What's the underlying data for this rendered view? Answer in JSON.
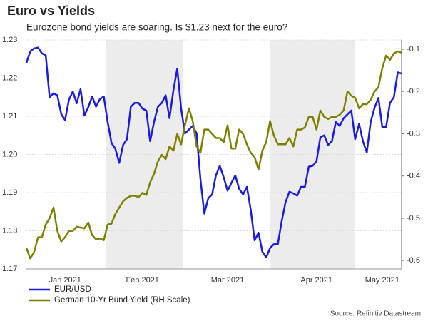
{
  "chart_data": {
    "type": "line",
    "title": "Euro vs Yields",
    "subtitle": "Eurozone bond yields are soaring. Is $1.23 next for the euro?",
    "source": "Source: Refinitiv Datastream",
    "categories": [
      null,
      null,
      null,
      null,
      null,
      null,
      null,
      null,
      null,
      null,
      "Jan 2021",
      null,
      null,
      null,
      null,
      null,
      null,
      null,
      null,
      null,
      null,
      null,
      null,
      null,
      null,
      null,
      null,
      null,
      null,
      null,
      "Feb 2021",
      null,
      null,
      null,
      null,
      null,
      null,
      null,
      null,
      null,
      null,
      null,
      null,
      null,
      null,
      null,
      null,
      null,
      null,
      null,
      null,
      null,
      "Mar 2021",
      null,
      null,
      null,
      null,
      null,
      null,
      null,
      null,
      null,
      null,
      null,
      null,
      null,
      null,
      null,
      null,
      null,
      null,
      null,
      null,
      null,
      null,
      "Apr 2021",
      null,
      null,
      null,
      null,
      null,
      null,
      null,
      null,
      null,
      null,
      null,
      null,
      null,
      null,
      null,
      null,
      "May 2021",
      null,
      null,
      null,
      null,
      null
    ],
    "ylim": [
      1.17,
      1.23
    ],
    "yticks": [
      1.17,
      1.18,
      1.19,
      {
        "value": 1.2,
        "label": "1.20"
      },
      1.21,
      1.22,
      1.23
    ],
    "y2lim": [
      -0.62,
      -0.078
    ],
    "y2ticks": [
      -0.6,
      -0.5,
      -0.4,
      -0.3,
      -0.2,
      -0.1
    ],
    "grid": true,
    "legend": "bottom-left",
    "series": [
      {
        "name": "EUR/USD",
        "color": "#1a1ae6",
        "values": [
          1.224,
          1.227,
          1.2278,
          1.228,
          1.2265,
          1.226,
          1.215,
          1.216,
          1.2155,
          1.2106,
          1.209,
          1.2143,
          1.2165,
          1.2134,
          1.2171,
          1.2102,
          1.2124,
          1.2152,
          1.2125,
          1.2145,
          1.2152,
          1.2085,
          1.203,
          1.2015,
          1.1978,
          1.2025,
          1.204,
          1.2125,
          1.2135,
          1.2135,
          1.212,
          1.2115,
          1.2035,
          1.2085,
          1.2125,
          1.2135,
          1.2155,
          1.2095,
          1.2168,
          1.2225,
          1.212,
          1.2055,
          1.2065,
          1.2075,
          1.2055,
          1.1935,
          1.1845,
          1.1885,
          1.1895,
          1.1945,
          1.197,
          1.194,
          1.1905,
          1.1925,
          1.1945,
          1.191,
          1.1895,
          1.1915,
          1.1855,
          1.1775,
          1.1795,
          1.1745,
          1.173,
          1.1755,
          1.1765,
          1.1765,
          1.1825,
          1.1875,
          1.1902,
          1.1898,
          1.1892,
          1.1915,
          1.1915,
          1.1968,
          1.197,
          1.1982,
          1.2045,
          1.205,
          1.2025,
          1.2035,
          1.2085,
          1.2075,
          1.2095,
          1.2105,
          1.2115,
          1.204,
          1.208,
          1.2035,
          1.2005,
          1.2085,
          1.2122,
          1.2148,
          1.2072,
          1.2072,
          1.2135,
          1.215,
          1.2215,
          1.2212
        ]
      },
      {
        "name": "German 10-Yr Bund Yield (RH Scale)",
        "color": "#808000",
        "axis": "y2",
        "values": [
          -0.57,
          -0.595,
          -0.58,
          -0.545,
          -0.545,
          -0.515,
          -0.5,
          -0.475,
          -0.53,
          -0.555,
          -0.545,
          -0.53,
          -0.53,
          -0.52,
          -0.522,
          -0.524,
          -0.51,
          -0.54,
          -0.55,
          -0.548,
          -0.552,
          -0.515,
          -0.513,
          -0.49,
          -0.475,
          -0.46,
          -0.452,
          -0.447,
          -0.447,
          -0.45,
          -0.44,
          -0.445,
          -0.415,
          -0.395,
          -0.365,
          -0.35,
          -0.36,
          -0.33,
          -0.34,
          -0.3,
          -0.325,
          -0.28,
          -0.24,
          -0.27,
          -0.33,
          -0.345,
          -0.29,
          -0.29,
          -0.3,
          -0.31,
          -0.31,
          -0.32,
          -0.28,
          -0.335,
          -0.335,
          -0.29,
          -0.3,
          -0.325,
          -0.345,
          -0.355,
          -0.385,
          -0.34,
          -0.32,
          -0.27,
          -0.305,
          -0.325,
          -0.325,
          -0.325,
          -0.31,
          -0.33,
          -0.29,
          -0.29,
          -0.285,
          -0.26,
          -0.26,
          -0.29,
          -0.245,
          -0.26,
          -0.265,
          -0.26,
          -0.26,
          -0.255,
          -0.245,
          -0.2,
          -0.21,
          -0.215,
          -0.24,
          -0.23,
          -0.23,
          -0.22,
          -0.2,
          -0.19,
          -0.145,
          -0.115,
          -0.125,
          -0.11,
          -0.105,
          -0.108
        ]
      }
    ]
  }
}
